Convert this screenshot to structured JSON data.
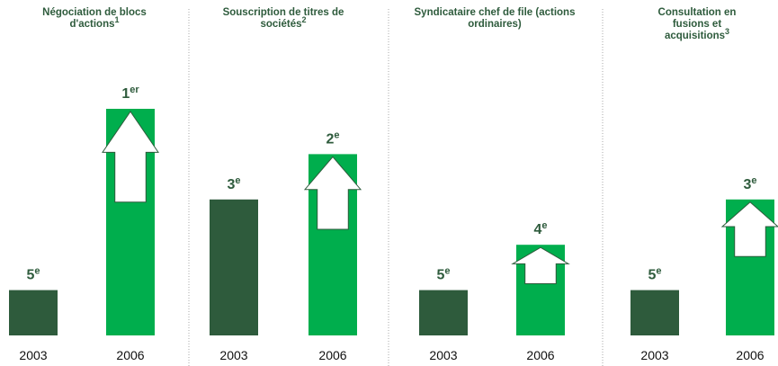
{
  "chart_data": [
    {
      "type": "bar",
      "title": "Négociation de blocs d'actions",
      "title_note": "1",
      "categories": [
        "2003",
        "2006"
      ],
      "values": [
        5,
        1
      ],
      "value_labels": [
        "5e",
        "1er"
      ],
      "colors": [
        "#2e5b3c",
        "#00ae4d"
      ],
      "ylim": [
        6,
        1
      ]
    },
    {
      "type": "bar",
      "title": "Souscription de titres de sociétés",
      "title_note": "2",
      "categories": [
        "2003",
        "2006"
      ],
      "values": [
        3,
        2
      ],
      "value_labels": [
        "3e",
        "2e"
      ],
      "colors": [
        "#2e5b3c",
        "#00ae4d"
      ],
      "ylim": [
        6,
        1
      ]
    },
    {
      "type": "bar",
      "title": "Syndicataire chef de file (actions ordinaires)",
      "categories": [
        "2003",
        "2006"
      ],
      "values": [
        5,
        4
      ],
      "value_labels": [
        "5e",
        "4e"
      ],
      "colors": [
        "#2e5b3c",
        "#00ae4d"
      ],
      "ylim": [
        6,
        1
      ]
    },
    {
      "type": "bar",
      "title": "Consultation en fusions et acquisitions",
      "title_note": "3",
      "categories": [
        "2003",
        "2006"
      ],
      "values": [
        5,
        3
      ],
      "value_labels": [
        "5e",
        "3e"
      ],
      "colors": [
        "#2e5b3c",
        "#00ae4d"
      ],
      "ylim": [
        6,
        1
      ]
    }
  ]
}
